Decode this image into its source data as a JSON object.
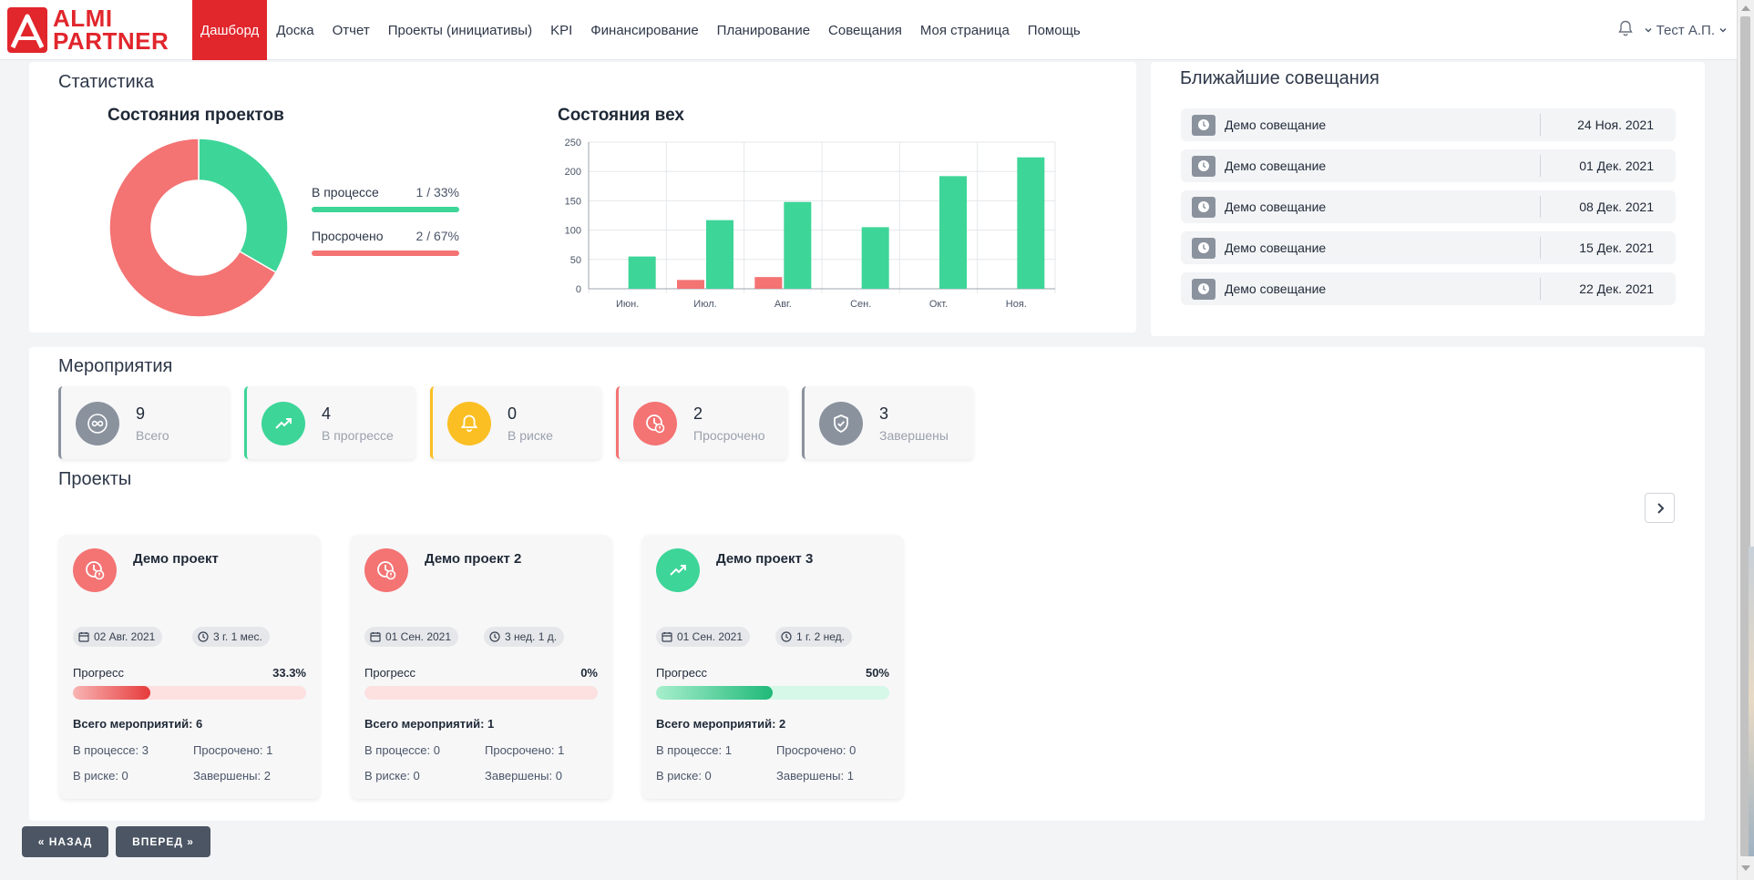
{
  "brand": {
    "line1": "ALMI",
    "line2": "PARTNER",
    "color": "#e1262c"
  },
  "nav": {
    "items": [
      "Дашборд",
      "Доска",
      "Отчет",
      "Проекты (инициативы)",
      "KPI",
      "Финансирование",
      "Планирование",
      "Совещания",
      "Моя страница",
      "Помощь"
    ],
    "active": "Дашборд",
    "user": "Тест А.П."
  },
  "stats": {
    "title": "Статистика",
    "projects_title": "Состояния проектов",
    "milestones_title": "Состояния вех",
    "legend": [
      {
        "label": "В процессе",
        "value": "1 / 33%",
        "color": "#3dd598"
      },
      {
        "label": "Просрочено",
        "value": "2 / 67%",
        "color": "#f47373"
      }
    ]
  },
  "chart_data": [
    {
      "type": "pie",
      "title": "Состояния проектов",
      "donut": true,
      "series": [
        {
          "name": "В процессе",
          "value": 1,
          "color": "#3dd598"
        },
        {
          "name": "Просрочено",
          "value": 2,
          "color": "#f47373"
        }
      ]
    },
    {
      "type": "bar",
      "title": "Состояния вех",
      "categories": [
        "Июн.",
        "Июл.",
        "Авг.",
        "Сен.",
        "Окт.",
        "Ноя."
      ],
      "series": [
        {
          "values": [
            0,
            15,
            20,
            0,
            0,
            0
          ],
          "color": "#f47373"
        },
        {
          "values": [
            55,
            117,
            148,
            105,
            192,
            224
          ],
          "color": "#3dd598"
        }
      ],
      "ylim": [
        0,
        250
      ],
      "yticks": [
        0,
        50,
        100,
        150,
        200,
        250
      ],
      "grid": true
    }
  ],
  "meetings": {
    "title": "Ближайшие совещания",
    "items": [
      {
        "name": "Демо совещание",
        "date": "24 Ноя. 2021"
      },
      {
        "name": "Демо совещание",
        "date": "01 Дек. 2021"
      },
      {
        "name": "Демо совещание",
        "date": "08 Дек. 2021"
      },
      {
        "name": "Демо совещание",
        "date": "15 Дек. 2021"
      },
      {
        "name": "Демо совещание",
        "date": "22 Дек. 2021"
      }
    ]
  },
  "events": {
    "title": "Мероприятия",
    "kpis": [
      {
        "count": "9",
        "label": "Всего",
        "color": "#8a929e",
        "icon": "infinity-icon"
      },
      {
        "count": "4",
        "label": "В прогрессе",
        "color": "#3dd598",
        "icon": "trend-up-icon"
      },
      {
        "count": "0",
        "label": "В риске",
        "color": "#fbbf24",
        "icon": "bell-icon"
      },
      {
        "count": "2",
        "label": "Просрочено",
        "color": "#f47373",
        "icon": "clock-alert-icon"
      },
      {
        "count": "3",
        "label": "Завершены",
        "color": "#8a929e",
        "icon": "shield-check-icon"
      }
    ]
  },
  "projects": {
    "title": "Проекты",
    "progress_label": "Прогресс",
    "items": [
      {
        "name": "Демо проект",
        "status": "Просрочено",
        "icon_color": "#f47373",
        "start": "02 Авг. 2021",
        "duration": "3 г. 1 мес.",
        "progress_text": "33.3%",
        "progress": 0.333,
        "total": "Всего мероприятий: 6",
        "in_process": "В процессе: 3",
        "overdue": "Просрочено: 1",
        "at_risk": "В риске: 0",
        "done": "Завершены: 2"
      },
      {
        "name": "Демо проект 2",
        "status": "Просрочено",
        "icon_color": "#f47373",
        "start": "01 Сен. 2021",
        "duration": "3 нед. 1 д.",
        "progress_text": "0%",
        "progress": 0,
        "total": "Всего мероприятий: 1",
        "in_process": "В процессе: 0",
        "overdue": "Просрочено: 1",
        "at_risk": "В риске: 0",
        "done": "Завершены: 0"
      },
      {
        "name": "Демо проект 3",
        "status": "В прогрессе",
        "icon_color": "#3dd598",
        "start": "01 Сен. 2021",
        "duration": "1 г. 2 нед.",
        "progress_text": "50%",
        "progress": 0.5,
        "total": "Всего мероприятий: 2",
        "in_process": "В процессе: 1",
        "overdue": "Просрочено: 0",
        "at_risk": "В риске: 0",
        "done": "Завершены: 1"
      }
    ]
  },
  "footer": {
    "back": "« НАЗАД",
    "forward": "ВПЕРЕД »"
  }
}
